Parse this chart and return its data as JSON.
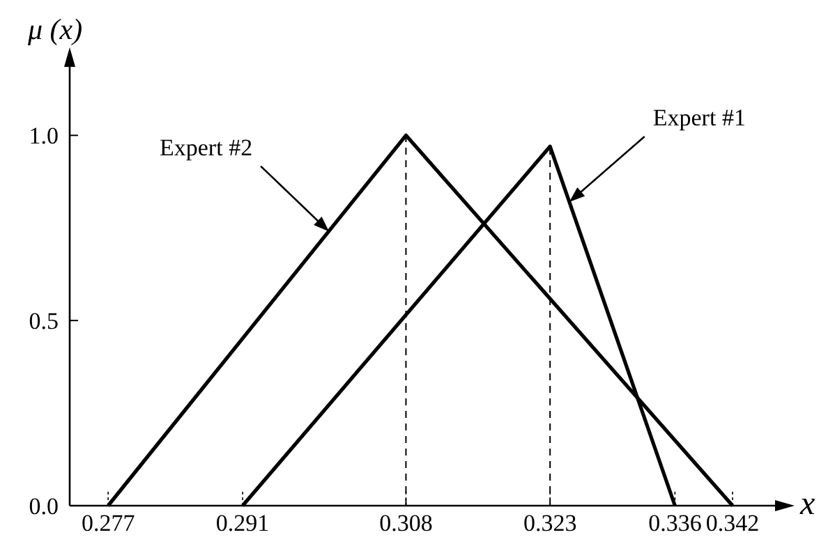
{
  "chart_data": {
    "type": "line",
    "xlabel": "x",
    "ylabel": "μ (x)",
    "series": [
      {
        "color": "#000000",
        "x": [
          0.277,
          0.308,
          0.342
        ],
        "values": [
          0,
          1,
          0
        ]
      },
      {
        "color": "#000000",
        "x": [
          0.291,
          0.323,
          0.336
        ],
        "values": [
          0,
          0.97,
          0
        ]
      }
    ],
    "xlim": [
      0.273,
      0.347
    ],
    "xticks": [
      0.277,
      0.291,
      0.308,
      0.323,
      0.336,
      0.342
    ],
    "ylim": [
      0,
      1.2
    ],
    "yticks": [
      {
        "value": 0,
        "label": "0.0"
      },
      {
        "value": 0.5,
        "label": "0.5"
      },
      {
        "value": 1,
        "label": "1.0"
      }
    ],
    "ref_lines": [
      {
        "axis": "x",
        "value": 0.308,
        "line_style": "dashed"
      },
      {
        "axis": "x",
        "value": 0.323,
        "line_style": "dashed"
      }
    ],
    "annotations": [
      {
        "text": "Expert #2",
        "x": 0.3,
        "y": 0.74
      },
      {
        "text": "Expert #1",
        "x": 0.325,
        "y": 0.82
      }
    ],
    "marker": "none",
    "line_style": "solid"
  }
}
